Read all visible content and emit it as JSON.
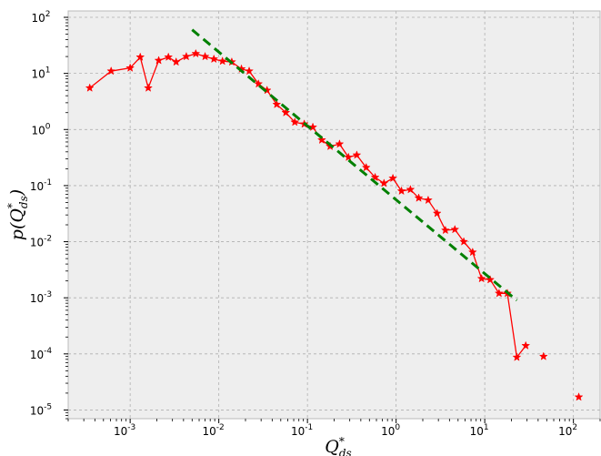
{
  "chart_data": {
    "type": "scatter",
    "title": "",
    "xlabel": "Q*_ds",
    "ylabel": "p(Q*_ds)",
    "x_scale": "log",
    "y_scale": "log",
    "xlim": [
      0.0002,
      200
    ],
    "ylim": [
      7e-06,
      130
    ],
    "grid": true,
    "background": "#eeeeee",
    "x_ticks": [
      {
        "value": 0.001,
        "base": "10",
        "exp": "-3"
      },
      {
        "value": 0.01,
        "base": "10",
        "exp": "-2"
      },
      {
        "value": 0.1,
        "base": "10",
        "exp": "-1"
      },
      {
        "value": 1,
        "base": "10",
        "exp": "0"
      },
      {
        "value": 10,
        "base": "10",
        "exp": "1"
      },
      {
        "value": 100,
        "base": "10",
        "exp": "2"
      }
    ],
    "y_ticks": [
      {
        "value": 1e-05,
        "base": "10",
        "exp": "-5"
      },
      {
        "value": 0.0001,
        "base": "10",
        "exp": "-4"
      },
      {
        "value": 0.001,
        "base": "10",
        "exp": "-3"
      },
      {
        "value": 0.01,
        "base": "10",
        "exp": "-2"
      },
      {
        "value": 0.1,
        "base": "10",
        "exp": "-1"
      },
      {
        "value": 1,
        "base": "10",
        "exp": "0"
      },
      {
        "value": 10,
        "base": "10",
        "exp": "1"
      },
      {
        "value": 100,
        "base": "10",
        "exp": "2"
      }
    ],
    "series": [
      {
        "color": "#ff0000",
        "marker": "star",
        "style": "line",
        "points": [
          [
            0.00035,
            5.5
          ],
          [
            0.00061,
            11
          ],
          [
            0.001,
            12.5
          ],
          [
            0.0013,
            19.5
          ],
          [
            0.0016,
            5.5
          ],
          [
            0.0021,
            17
          ],
          [
            0.0027,
            19.5
          ],
          [
            0.0033,
            16
          ],
          [
            0.0043,
            20
          ],
          [
            0.0055,
            22.5
          ],
          [
            0.007,
            20
          ],
          [
            0.0088,
            18
          ],
          [
            0.011,
            16.5
          ],
          [
            0.014,
            16
          ],
          [
            0.018,
            12
          ],
          [
            0.022,
            11
          ],
          [
            0.028,
            6.5
          ],
          [
            0.035,
            5
          ],
          [
            0.045,
            2.8
          ],
          [
            0.057,
            2
          ],
          [
            0.072,
            1.35
          ],
          [
            0.092,
            1.25
          ],
          [
            0.115,
            1.1
          ],
          [
            0.145,
            0.65
          ],
          [
            0.18,
            0.5
          ],
          [
            0.23,
            0.55
          ],
          [
            0.29,
            0.32
          ],
          [
            0.36,
            0.35
          ],
          [
            0.46,
            0.21
          ],
          [
            0.58,
            0.14
          ],
          [
            0.73,
            0.11
          ],
          [
            0.92,
            0.135
          ],
          [
            1.15,
            0.08
          ],
          [
            1.45,
            0.085
          ],
          [
            1.8,
            0.06
          ],
          [
            2.3,
            0.055
          ],
          [
            2.9,
            0.032
          ],
          [
            3.6,
            0.016
          ],
          [
            4.6,
            0.0165
          ],
          [
            5.8,
            0.01
          ],
          [
            7.3,
            0.0065
          ],
          [
            9.2,
            0.0022
          ],
          [
            11.5,
            0.0021
          ],
          [
            14.5,
            0.0012
          ],
          [
            18,
            0.0012
          ],
          [
            23,
            8.7e-05
          ],
          [
            29,
            0.00014
          ]
        ]
      },
      {
        "color": "#ff0000",
        "marker": "star",
        "style": "markers",
        "points": [
          [
            46,
            9e-05
          ],
          [
            115,
            1.7e-05
          ]
        ]
      },
      {
        "color": "#008000",
        "marker": "none",
        "style": "dashed-line",
        "points": [
          [
            0.005,
            60
          ],
          [
            23,
            0.0009
          ]
        ]
      }
    ]
  }
}
